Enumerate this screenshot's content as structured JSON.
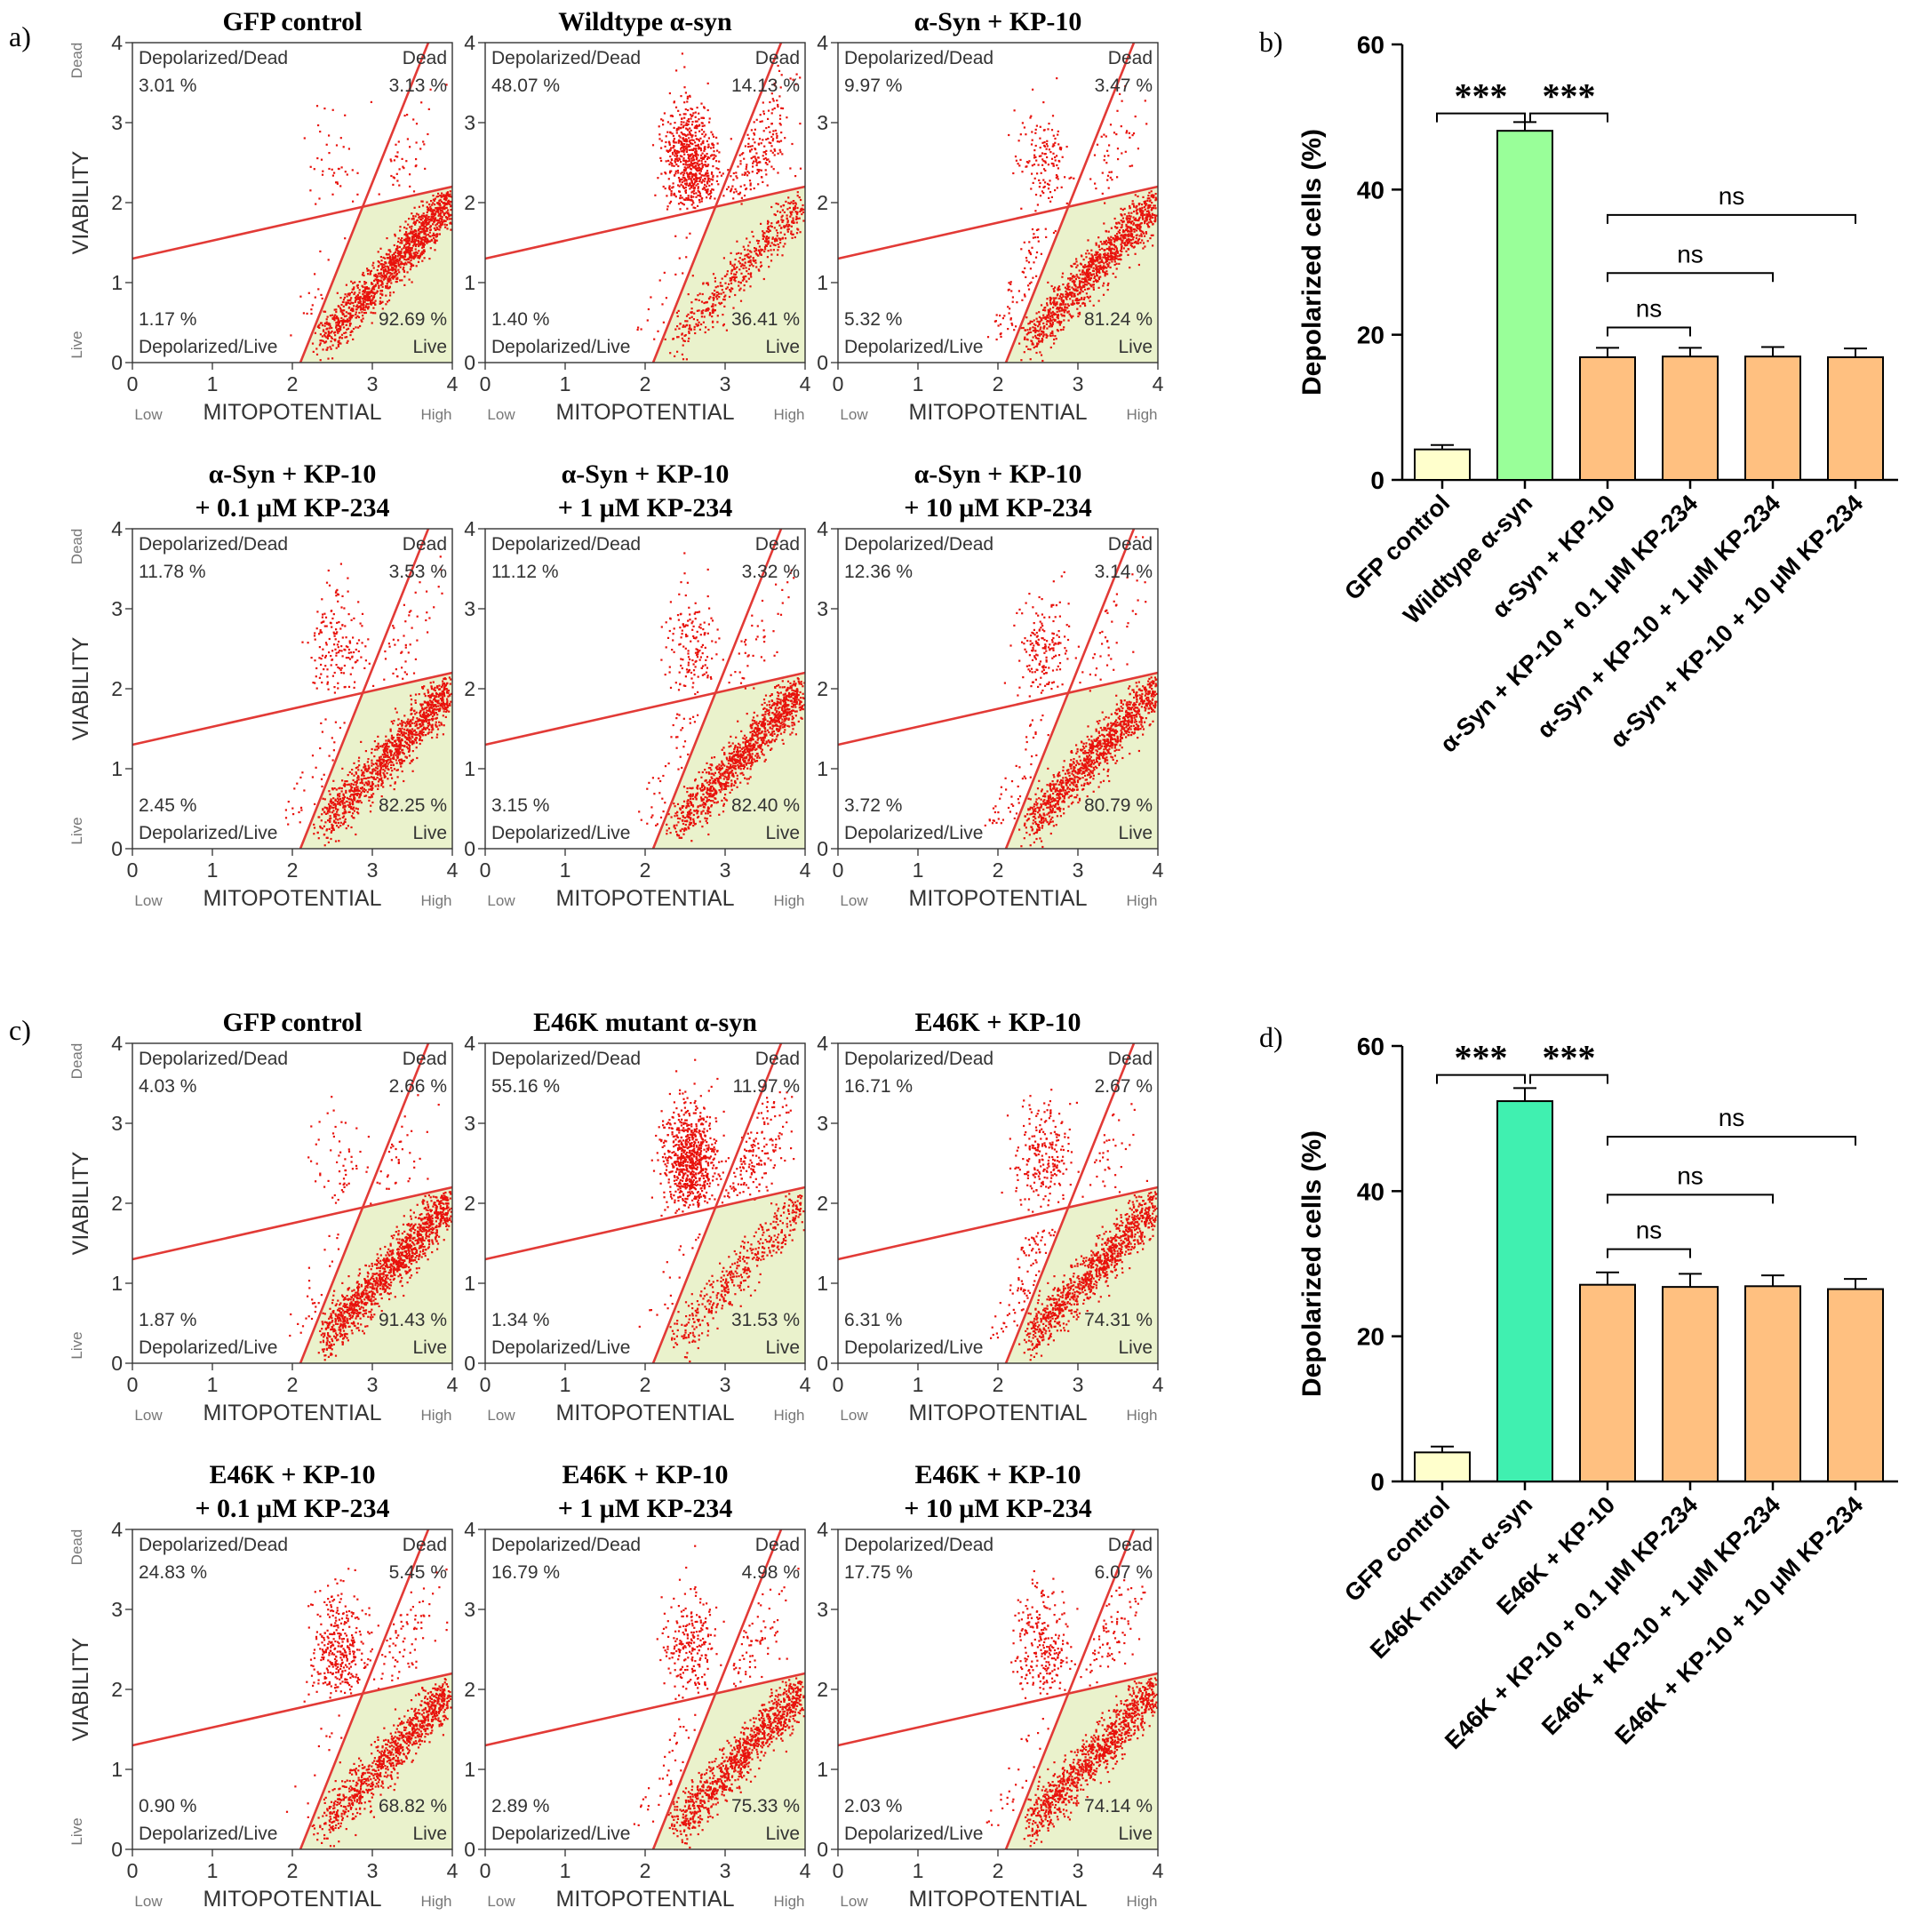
{
  "chart_data": {
    "panel_labels": [
      "a)",
      "b)",
      "c)",
      "d)"
    ],
    "scatter_panels": {
      "axis": {
        "x_label": "MITOPOTENTIAL",
        "x_low": "Low",
        "x_high": "High",
        "y_label": "VIABILITY",
        "y_low": "Live",
        "y_high": "Dead",
        "x_ticks": [
          "0",
          "1",
          "2",
          "3",
          "4"
        ],
        "y_ticks": [
          "0",
          "1",
          "2",
          "3",
          "4"
        ],
        "xlim": [
          0,
          4
        ],
        "ylim": [
          0,
          4
        ]
      },
      "quadrant_labels": {
        "tl": "Depolarized/Dead",
        "tr": "Dead",
        "bl": "Depolarized/Live",
        "br": "Live"
      },
      "gates": {
        "line1": [
          [
            0,
            1.3
          ],
          [
            4,
            2.2
          ]
        ],
        "line2": [
          [
            2.1,
            0
          ],
          [
            3.7,
            4.0
          ]
        ]
      },
      "colors": {
        "points": "#e8120c",
        "gate": "#e23a36",
        "live_fill": "#eaf2cc"
      },
      "a": [
        {
          "title": [
            "GFP control"
          ],
          "tl": "3.01 %",
          "tr": "3.13 %",
          "bl": "1.17 %",
          "br": "92.69 %"
        },
        {
          "title": [
            "Wildtype α-syn"
          ],
          "tl": "48.07 %",
          "tr": "14.13 %",
          "bl": "1.40 %",
          "br": "36.41 %"
        },
        {
          "title": [
            "α-Syn + KP-10"
          ],
          "tl": "9.97 %",
          "tr": "3.47 %",
          "bl": "5.32 %",
          "br": "81.24 %"
        },
        {
          "title": [
            "α-Syn + KP-10",
            "+ 0.1 μM KP-234"
          ],
          "tl": "11.78 %",
          "tr": "3.53 %",
          "bl": "2.45 %",
          "br": "82.25 %"
        },
        {
          "title": [
            "α-Syn + KP-10",
            "+ 1 μM KP-234"
          ],
          "tl": "11.12 %",
          "tr": "3.32 %",
          "bl": "3.15 %",
          "br": "82.40 %"
        },
        {
          "title": [
            "α-Syn + KP-10",
            "+ 10 μM KP-234"
          ],
          "tl": "12.36 %",
          "tr": "3.14 %",
          "bl": "3.72 %",
          "br": "80.79 %"
        }
      ],
      "c": [
        {
          "title": [
            "GFP control"
          ],
          "tl": "4.03 %",
          "tr": "2.66 %",
          "bl": "1.87 %",
          "br": "91.43 %"
        },
        {
          "title": [
            "E46K mutant α-syn"
          ],
          "tl": "55.16 %",
          "tr": "11.97 %",
          "bl": "1.34 %",
          "br": "31.53 %"
        },
        {
          "title": [
            "E46K + KP-10"
          ],
          "tl": "16.71 %",
          "tr": "2.67 %",
          "bl": "6.31 %",
          "br": "74.31 %"
        },
        {
          "title": [
            "E46K + KP-10",
            "+ 0.1 μM KP-234"
          ],
          "tl": "24.83 %",
          "tr": "5.45 %",
          "bl": "0.90 %",
          "br": "68.82 %"
        },
        {
          "title": [
            "E46K + KP-10",
            "+ 1 μM KP-234"
          ],
          "tl": "16.79 %",
          "tr": "4.98 %",
          "bl": "2.89 %",
          "br": "75.33 %"
        },
        {
          "title": [
            "E46K + KP-10",
            "+ 10 μM KP-234"
          ],
          "tl": "17.75 %",
          "tr": "6.07 %",
          "bl": "2.03 %",
          "br": "74.14 %"
        }
      ]
    },
    "bar_charts": [
      {
        "type": "bar",
        "id": "b",
        "ylabel": "Depolarized cells (%)",
        "ylim": [
          0,
          60
        ],
        "yticks": [
          "0",
          "20",
          "40",
          "60"
        ],
        "categories": [
          "GFP control",
          "Wildtype α-syn",
          "α-Syn + KP-10",
          "α-Syn + KP-10 + 0.1 μM KP-234",
          "α-Syn + KP-10 + 1 μM KP-234",
          "α-Syn + KP-10 + 10 μM KP-234"
        ],
        "values": [
          4.2,
          48.1,
          16.9,
          17.0,
          17.0,
          16.9
        ],
        "errors": [
          0.6,
          1.2,
          1.3,
          1.2,
          1.3,
          1.2
        ],
        "colors": [
          "#ffffcc",
          "#99ff99",
          "#ffc080",
          "#ffc080",
          "#ffc080",
          "#ffc080"
        ],
        "significance": [
          {
            "from": 0,
            "to": 1,
            "label": "***",
            "y": 50.5
          },
          {
            "from": 1,
            "to": 2,
            "label": "***",
            "y": 50.5
          },
          {
            "from": 2,
            "to": 5,
            "label": "ns",
            "y": 36.5
          },
          {
            "from": 2,
            "to": 4,
            "label": "ns",
            "y": 28.5
          },
          {
            "from": 2,
            "to": 3,
            "label": "ns",
            "y": 21
          }
        ]
      },
      {
        "type": "bar",
        "id": "d",
        "ylabel": "Depolarized cells (%)",
        "ylim": [
          0,
          60
        ],
        "yticks": [
          "0",
          "20",
          "40",
          "60"
        ],
        "categories": [
          "GFP control",
          "E46K mutant α-syn",
          "E46K + KP-10",
          "E46K + KP-10 + 0.1 μM KP-234",
          "E46K + KP-10 + 1 μM KP-234",
          "E46K + KP-10 + 10 μM KP-234"
        ],
        "values": [
          4.0,
          52.4,
          27.1,
          26.8,
          26.9,
          26.5
        ],
        "errors": [
          0.8,
          1.8,
          1.7,
          1.8,
          1.5,
          1.4
        ],
        "colors": [
          "#ffffcc",
          "#40f0b0",
          "#ffc080",
          "#ffc080",
          "#ffc080",
          "#ffc080"
        ],
        "significance": [
          {
            "from": 0,
            "to": 1,
            "label": "***",
            "y": 56
          },
          {
            "from": 1,
            "to": 2,
            "label": "***",
            "y": 56
          },
          {
            "from": 2,
            "to": 5,
            "label": "ns",
            "y": 47.5
          },
          {
            "from": 2,
            "to": 4,
            "label": "ns",
            "y": 39.5
          },
          {
            "from": 2,
            "to": 3,
            "label": "ns",
            "y": 32
          }
        ]
      }
    ]
  }
}
